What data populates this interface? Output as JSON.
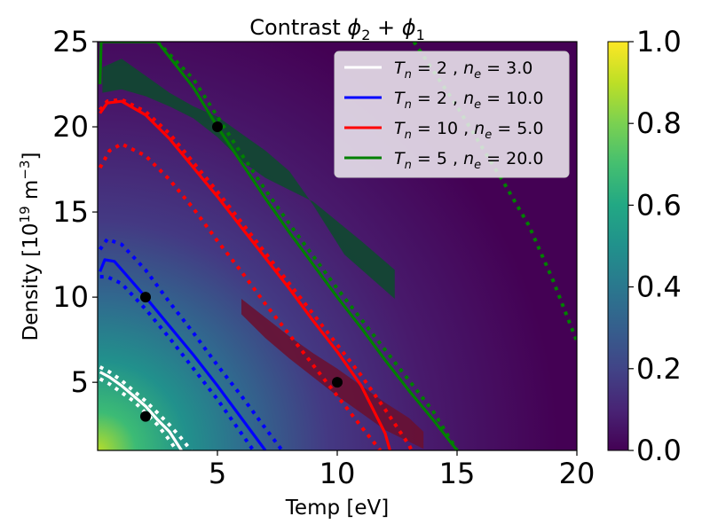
{
  "chart_data": {
    "type": "heatmap",
    "title_prefix": "Contrast ",
    "title_math": [
      "ϕ",
      "2",
      " + ",
      "ϕ",
      "1"
    ],
    "xlabel": "Temp [eV]",
    "ylabel_prefix": "Density [10",
    "ylabel_exp": "19",
    "ylabel_mid": " m",
    "ylabel_exp2": "−3",
    "ylabel_suffix": "]",
    "xlim": [
      0,
      20
    ],
    "ylim": [
      1,
      25
    ],
    "xticks": [
      "5",
      "10",
      "15",
      "20"
    ],
    "yticks": [
      "5",
      "10",
      "15",
      "20",
      "25"
    ],
    "colorbar": {
      "range": [
        0,
        1
      ],
      "ticks": [
        "0.0",
        "0.2",
        "0.4",
        "0.6",
        "0.8",
        "1.0"
      ],
      "colormap": "viridis"
    },
    "legend": {
      "location": "upper right",
      "entries": [
        {
          "label_T": "T",
          "label_Tsub": "n",
          "label_eq1": " = 2 , ",
          "label_n": "n",
          "label_nsub": "e",
          "label_eq2": " = 3.0",
          "color": "#ffffff"
        },
        {
          "label_T": "T",
          "label_Tsub": "n",
          "label_eq1": " = 2 , ",
          "label_n": "n",
          "label_nsub": "e",
          "label_eq2": " = 10.0",
          "color": "#0000ff"
        },
        {
          "label_T": "T",
          "label_Tsub": "n",
          "label_eq1": " = 10 , ",
          "label_n": "n",
          "label_nsub": "e",
          "label_eq2": " = 5.0",
          "color": "#ff0000"
        },
        {
          "label_T": "T",
          "label_Tsub": "n",
          "label_eq1": " = 5 , ",
          "label_n": "n",
          "label_nsub": "e",
          "label_eq2": " = 20.0",
          "color": "#008000"
        }
      ]
    },
    "points": [
      {
        "T": 2,
        "n": 3,
        "color": "#000000"
      },
      {
        "T": 2,
        "n": 10,
        "color": "#000000"
      },
      {
        "T": 10,
        "n": 5,
        "color": "#000000"
      },
      {
        "T": 5,
        "n": 20,
        "color": "#000000"
      }
    ],
    "curves": [
      {
        "name": "white-solid",
        "color": "#ffffff",
        "style": "solid",
        "points": [
          [
            0.1,
            5.6
          ],
          [
            0.5,
            5.3
          ],
          [
            1,
            4.8
          ],
          [
            1.5,
            4.2
          ],
          [
            2,
            3.6
          ],
          [
            2.5,
            2.8
          ],
          [
            3,
            2.1
          ],
          [
            3.5,
            1.0
          ]
        ]
      },
      {
        "name": "white-dotted-upper",
        "color": "#ffffff",
        "style": "dotted",
        "points": [
          [
            0.1,
            5.9
          ],
          [
            0.5,
            5.6
          ],
          [
            1,
            5.1
          ],
          [
            1.5,
            4.5
          ],
          [
            2,
            3.9
          ],
          [
            2.5,
            3.2
          ],
          [
            3,
            2.5
          ],
          [
            3.5,
            1.7
          ],
          [
            3.9,
            1.0
          ]
        ]
      },
      {
        "name": "white-dotted-lower",
        "color": "#ffffff",
        "style": "dotted",
        "points": [
          [
            0.1,
            5.2
          ],
          [
            0.5,
            4.9
          ],
          [
            1,
            4.4
          ],
          [
            1.5,
            3.9
          ],
          [
            2,
            3.2
          ],
          [
            2.5,
            2.5
          ],
          [
            3,
            1.6
          ],
          [
            3.3,
            1.0
          ]
        ]
      },
      {
        "name": "blue-solid",
        "color": "#0000ff",
        "style": "solid",
        "points": [
          [
            0.1,
            11.5
          ],
          [
            0.3,
            12.2
          ],
          [
            0.7,
            12.1
          ],
          [
            1.2,
            11.3
          ],
          [
            2,
            10.0
          ],
          [
            3,
            8.3
          ],
          [
            4,
            6.6
          ],
          [
            5,
            4.8
          ],
          [
            6,
            2.9
          ],
          [
            7,
            1.0
          ]
        ]
      },
      {
        "name": "blue-dotted-upper",
        "color": "#0000ff",
        "style": "dotted",
        "points": [
          [
            0.1,
            12.8
          ],
          [
            0.4,
            13.4
          ],
          [
            1,
            13.1
          ],
          [
            2,
            11.6
          ],
          [
            3,
            9.7
          ],
          [
            4,
            7.9
          ],
          [
            5,
            6.0
          ],
          [
            6,
            4.2
          ],
          [
            7,
            2.3
          ],
          [
            7.7,
            1.0
          ]
        ]
      },
      {
        "name": "blue-dotted-lower",
        "color": "#0000ff",
        "style": "dotted",
        "points": [
          [
            0.1,
            11.2
          ],
          [
            0.4,
            11.2
          ],
          [
            1,
            10.8
          ],
          [
            2,
            9.3
          ],
          [
            3,
            7.6
          ],
          [
            4,
            5.8
          ],
          [
            5,
            4.0
          ],
          [
            6,
            2.0
          ],
          [
            6.5,
            1.0
          ]
        ]
      },
      {
        "name": "red-solid",
        "color": "#ff0000",
        "style": "solid",
        "points": [
          [
            0.1,
            20.8
          ],
          [
            0.4,
            21.4
          ],
          [
            1,
            21.5
          ],
          [
            2,
            20.7
          ],
          [
            3,
            19.3
          ],
          [
            4,
            17.6
          ],
          [
            5,
            15.9
          ],
          [
            6,
            14.1
          ],
          [
            7,
            12.3
          ],
          [
            8,
            10.5
          ],
          [
            9,
            8.6
          ],
          [
            10,
            6.8
          ],
          [
            11,
            4.8
          ],
          [
            12,
            2.0
          ],
          [
            12.2,
            1.0
          ]
        ]
      },
      {
        "name": "red-dotted-upper",
        "color": "#ff0000",
        "style": "dotted",
        "points": [
          [
            0.1,
            21.0
          ],
          [
            0.4,
            21.5
          ],
          [
            1,
            21.6
          ],
          [
            2,
            20.9
          ],
          [
            3,
            19.6
          ],
          [
            4,
            17.9
          ],
          [
            5,
            16.2
          ],
          [
            6,
            14.4
          ],
          [
            7,
            12.6
          ],
          [
            8,
            10.8
          ],
          [
            9,
            9.0
          ],
          [
            10,
            7.2
          ],
          [
            11,
            5.4
          ],
          [
            12,
            3.4
          ],
          [
            13,
            1.3
          ],
          [
            13.1,
            1.0
          ]
        ]
      },
      {
        "name": "red-dotted-lower",
        "color": "#ff0000",
        "style": "dotted",
        "points": [
          [
            0.1,
            17.6
          ],
          [
            0.5,
            18.6
          ],
          [
            1,
            19.0
          ],
          [
            2,
            18.3
          ],
          [
            3,
            16.9
          ],
          [
            4,
            15.2
          ],
          [
            5,
            13.3
          ],
          [
            6,
            11.5
          ],
          [
            7,
            9.6
          ],
          [
            8,
            7.8
          ],
          [
            9,
            6.0
          ],
          [
            10,
            4.2
          ],
          [
            11,
            2.4
          ],
          [
            11.8,
            1.0
          ]
        ]
      },
      {
        "name": "green-solid",
        "color": "#008000",
        "style": "solid",
        "points": [
          [
            0.1,
            22.5
          ],
          [
            0.15,
            25.0
          ],
          [
            2.5,
            25.0
          ],
          [
            4,
            22.3
          ],
          [
            5,
            20.0
          ],
          [
            6,
            17.9
          ],
          [
            7,
            15.8
          ],
          [
            8,
            13.8
          ],
          [
            9,
            11.9
          ],
          [
            10,
            10.0
          ],
          [
            11,
            8.2
          ],
          [
            12,
            6.3
          ],
          [
            13,
            4.5
          ],
          [
            14,
            2.8
          ],
          [
            15,
            1.0
          ]
        ]
      },
      {
        "name": "green-dotted-upper",
        "color": "#008000",
        "style": "dotted",
        "points": [
          [
            2.5,
            25.0
          ],
          [
            4,
            22.8
          ],
          [
            5,
            20.6
          ],
          [
            6,
            18.4
          ],
          [
            7,
            16.3
          ],
          [
            8,
            14.3
          ],
          [
            9,
            12.4
          ],
          [
            10,
            10.5
          ],
          [
            11,
            8.7
          ],
          [
            12,
            6.9
          ],
          [
            13,
            5.1
          ],
          [
            14,
            3.3
          ],
          [
            15,
            1.0
          ]
        ]
      },
      {
        "name": "green-dotted-far",
        "color": "#008000",
        "style": "dotted",
        "points": [
          [
            13.2,
            25.0
          ],
          [
            14,
            23.3
          ],
          [
            15,
            21.2
          ],
          [
            16,
            18.9
          ],
          [
            17,
            16.6
          ],
          [
            18,
            14.2
          ],
          [
            19,
            11.0
          ],
          [
            20,
            7.4
          ]
        ]
      }
    ],
    "regions": [
      {
        "name": "green-band",
        "color": "#0e4a2d",
        "upper": [
          [
            0.2,
            23.5
          ],
          [
            1,
            24.0
          ],
          [
            2,
            23.0
          ],
          [
            3,
            22.0
          ],
          [
            4,
            21.2
          ],
          [
            5,
            20.6
          ],
          [
            6,
            19.6
          ],
          [
            7,
            18.6
          ],
          [
            8,
            17.4
          ],
          [
            9,
            15.4
          ],
          [
            10.3,
            12.5
          ],
          [
            12.4,
            9.9
          ]
        ],
        "lower": [
          [
            12.4,
            11.6
          ],
          [
            11,
            13.3
          ],
          [
            9,
            15.6
          ],
          [
            8,
            16.3
          ],
          [
            7,
            17.0
          ],
          [
            6,
            18.0
          ],
          [
            5,
            19.4
          ],
          [
            4,
            20.5
          ],
          [
            3,
            21.2
          ],
          [
            2,
            21.8
          ],
          [
            1,
            22.2
          ],
          [
            0.2,
            22.0
          ]
        ]
      },
      {
        "name": "red-band",
        "color": "#6a1030",
        "upper": [
          [
            6,
            9.9
          ],
          [
            7,
            8.8
          ],
          [
            8,
            7.7
          ],
          [
            9,
            6.7
          ],
          [
            10,
            5.8
          ],
          [
            11,
            4.8
          ],
          [
            12,
            3.8
          ],
          [
            13,
            2.9
          ],
          [
            13.6,
            2.1
          ]
        ],
        "lower": [
          [
            13.6,
            1.1
          ],
          [
            12,
            2.2
          ],
          [
            11,
            3.2
          ],
          [
            10,
            4.2
          ],
          [
            9,
            5.3
          ],
          [
            8,
            6.4
          ],
          [
            7,
            7.6
          ],
          [
            6,
            9.0
          ]
        ]
      }
    ]
  }
}
